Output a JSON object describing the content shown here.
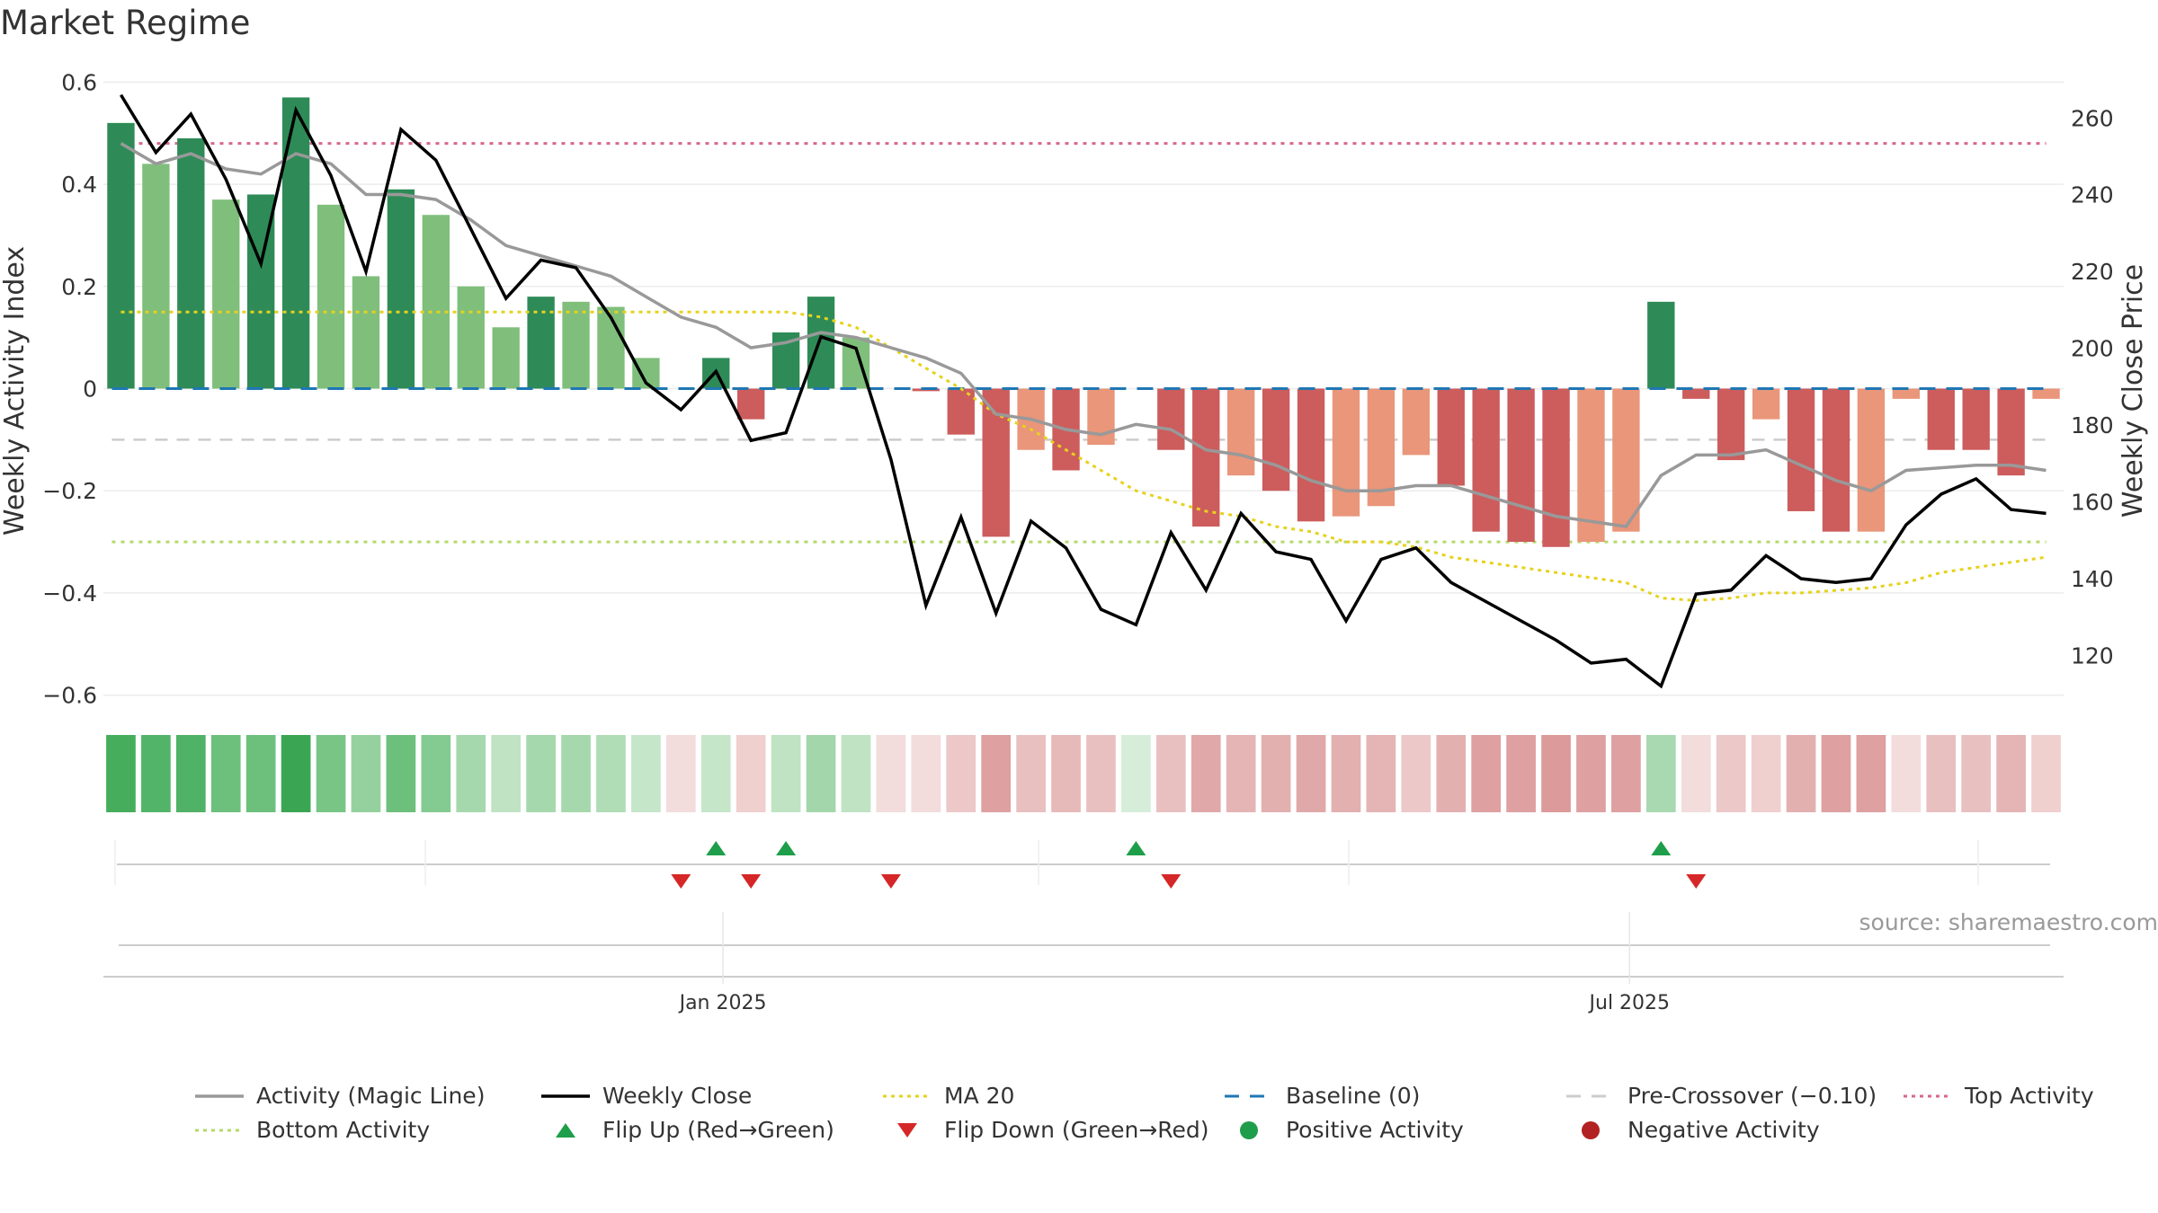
{
  "title": "Market Regime",
  "source": "source: sharemaestro.com",
  "colors": {
    "dark_green": "#2e8b57",
    "light_green": "#7fbf7b",
    "dark_red": "#cd5c5c",
    "light_red": "#e9967a",
    "magic_line": "#999999",
    "close_line": "#000000",
    "ma20": "#e6d21e",
    "baseline": "#1f77b4",
    "pre_crossover": "#cccccc",
    "top_activity": "#d9678a",
    "bottom_activity": "#b5d96a",
    "flip_up": "#1e9e4a",
    "flip_down": "#d62728"
  },
  "chart_data": {
    "type": "bar",
    "title": "Market Regime",
    "ylabel": "Weekly Activity Index",
    "y2label": "Weekly Close Price",
    "ylim": [
      -0.62,
      0.62
    ],
    "y2lim": [
      107,
      272
    ],
    "yticks": [
      0.6,
      0.4,
      0.2,
      0,
      -0.2,
      -0.4,
      -0.6
    ],
    "ytick_labels": [
      "0.6",
      "0.4",
      "0.2",
      "0",
      "−0.2",
      "−0.4",
      "−0.6"
    ],
    "y2ticks": [
      260,
      240,
      220,
      200,
      180,
      160,
      140,
      120
    ],
    "y2tick_labels": [
      "260",
      "240",
      "220",
      "200",
      "180",
      "160",
      "140",
      "120"
    ],
    "x_ticks": [
      {
        "label": "Jan 2025",
        "week": 17.7
      },
      {
        "label": "Jul 2025",
        "week": 43.6
      }
    ],
    "week_count": 56,
    "activity": [
      0.52,
      0.44,
      0.49,
      0.37,
      0.38,
      0.57,
      0.36,
      0.22,
      0.39,
      0.34,
      0.2,
      0.12,
      0.18,
      0.17,
      0.16,
      0.06,
      0.0,
      0.06,
      -0.06,
      0.11,
      0.18,
      0.1,
      0.0,
      -0.005,
      -0.09,
      -0.29,
      -0.12,
      -0.16,
      -0.11,
      -0.0,
      -0.12,
      -0.27,
      -0.17,
      -0.2,
      -0.26,
      -0.25,
      -0.23,
      -0.13,
      -0.19,
      -0.28,
      -0.3,
      -0.31,
      -0.3,
      -0.28,
      0.17,
      -0.02,
      -0.14,
      -0.06,
      -0.24,
      -0.28,
      -0.28,
      -0.02,
      -0.12,
      -0.12,
      -0.17,
      -0.02
    ],
    "bar_strength": [
      "dark",
      "light",
      "dark",
      "light",
      "dark",
      "dark",
      "light",
      "light",
      "dark",
      "light",
      "light",
      "light",
      "dark",
      "light",
      "light",
      "light",
      "none",
      "dark",
      "dark",
      "dark",
      "dark",
      "light",
      "none",
      "dark",
      "dark",
      "dark",
      "light",
      "dark",
      "light",
      "none",
      "dark",
      "dark",
      "light",
      "dark",
      "dark",
      "light",
      "light",
      "light",
      "dark",
      "dark",
      "dark",
      "dark",
      "light",
      "light",
      "dark",
      "dark",
      "dark",
      "light",
      "dark",
      "dark",
      "light",
      "light",
      "dark",
      "dark",
      "dark",
      "none"
    ],
    "magic_line": [
      0.48,
      0.44,
      0.46,
      0.43,
      0.42,
      0.46,
      0.44,
      0.38,
      0.38,
      0.37,
      0.33,
      0.28,
      0.26,
      0.24,
      0.22,
      0.18,
      0.14,
      0.12,
      0.08,
      0.09,
      0.11,
      0.1,
      0.08,
      0.06,
      0.03,
      -0.05,
      -0.06,
      -0.08,
      -0.09,
      -0.07,
      -0.08,
      -0.12,
      -0.13,
      -0.15,
      -0.18,
      -0.2,
      -0.2,
      -0.19,
      -0.19,
      -0.21,
      -0.23,
      -0.25,
      -0.26,
      -0.27,
      -0.17,
      -0.13,
      -0.13,
      -0.12,
      -0.15,
      -0.18,
      -0.2,
      -0.16,
      -0.155,
      -0.15,
      -0.15,
      -0.16
    ],
    "weekly_close": [
      266,
      251,
      261,
      244,
      222,
      262,
      245,
      220,
      257,
      249,
      231,
      213,
      223,
      221,
      208,
      191,
      184,
      194,
      176,
      178,
      203,
      200,
      171,
      133,
      156,
      131,
      155,
      148,
      132,
      128,
      152,
      137,
      157,
      147,
      145,
      129,
      145,
      148,
      139,
      134,
      129,
      124,
      118,
      119,
      112,
      136,
      137,
      146,
      140,
      139,
      140,
      154,
      162,
      166,
      158,
      157
    ],
    "ma20": [
      0.15,
      0.15,
      0.15,
      0.15,
      0.15,
      0.15,
      0.15,
      0.15,
      0.15,
      0.15,
      0.15,
      0.15,
      0.15,
      0.15,
      0.15,
      0.15,
      0.15,
      0.15,
      0.15,
      0.15,
      0.14,
      0.12,
      0.08,
      0.04,
      0.0,
      -0.05,
      -0.08,
      -0.12,
      -0.16,
      -0.2,
      -0.22,
      -0.24,
      -0.25,
      -0.27,
      -0.28,
      -0.3,
      -0.3,
      -0.31,
      -0.33,
      -0.34,
      -0.35,
      -0.36,
      -0.37,
      -0.38,
      -0.41,
      -0.415,
      -0.41,
      -0.4,
      -0.4,
      -0.395,
      -0.39,
      -0.38,
      -0.36,
      -0.35,
      -0.34,
      -0.33
    ],
    "baseline": 0,
    "pre_crossover": -0.1,
    "top_activity": 0.48,
    "bottom_activity": -0.3,
    "heat_strip": [
      "#45ad5c",
      "#52b468",
      "#4fb266",
      "#6cc07c",
      "#6cc07c",
      "#3aa653",
      "#78c586",
      "#95d19f",
      "#6cc07c",
      "#84cb91",
      "#a5d8ad",
      "#bfe3c3",
      "#a5d8ad",
      "#a5d8ad",
      "#b0dcb6",
      "#c6e6ca",
      "#f2dcdc",
      "#c6e6ca",
      "#f0cfcf",
      "#bfe3c3",
      "#a3d7ab",
      "#bfe3c3",
      "#f2dcdc",
      "#f2dcdc",
      "#ecc8c8",
      "#dea0a0",
      "#e9c0c0",
      "#e7baba",
      "#e9c0c0",
      "#d6eed9",
      "#e9c0c0",
      "#e0a8a8",
      "#e5b4b4",
      "#e3b0b0",
      "#e0a8a8",
      "#e3b0b0",
      "#e5b4b4",
      "#ecc8c8",
      "#e3b0b0",
      "#dea0a0",
      "#dea0a0",
      "#dc9a9a",
      "#dea0a0",
      "#dea0a0",
      "#a8d9b0",
      "#f2dcdc",
      "#ecc8c8",
      "#f0cfcf",
      "#e3b0b0",
      "#dea0a0",
      "#dea0a0",
      "#f2dcdc",
      "#e9c0c0",
      "#e9c0c0",
      "#e5b4b4",
      "#f0cfcf"
    ],
    "flip_up_weeks": [
      17,
      19,
      29,
      44
    ],
    "flip_down_weeks": [
      16,
      18,
      22,
      30,
      45
    ],
    "legend": [
      {
        "label": "Activity (Magic Line)",
        "kind": "line",
        "color": "#999999"
      },
      {
        "label": "Weekly Close",
        "kind": "line",
        "color": "#000000"
      },
      {
        "label": "MA 20",
        "kind": "dot-line",
        "color": "#e6d21e"
      },
      {
        "label": "Baseline (0)",
        "kind": "dash-line",
        "color": "#1f77b4"
      },
      {
        "label": "Pre-Crossover (−0.10)",
        "kind": "dash-line",
        "color": "#cccccc"
      },
      {
        "label": "Top Activity",
        "kind": "dot-line",
        "color": "#d9678a"
      },
      {
        "label": "Bottom Activity",
        "kind": "dot-line",
        "color": "#b5d96a"
      },
      {
        "label": "Flip Up (Red→Green)",
        "kind": "tri-up",
        "color": "#1e9e4a"
      },
      {
        "label": "Flip Down (Green→Red)",
        "kind": "tri-down",
        "color": "#d62728"
      },
      {
        "label": "Positive Activity",
        "kind": "circle",
        "color": "#1e9e4a"
      },
      {
        "label": "Negative Activity",
        "kind": "circle",
        "color": "#b22222"
      }
    ]
  }
}
